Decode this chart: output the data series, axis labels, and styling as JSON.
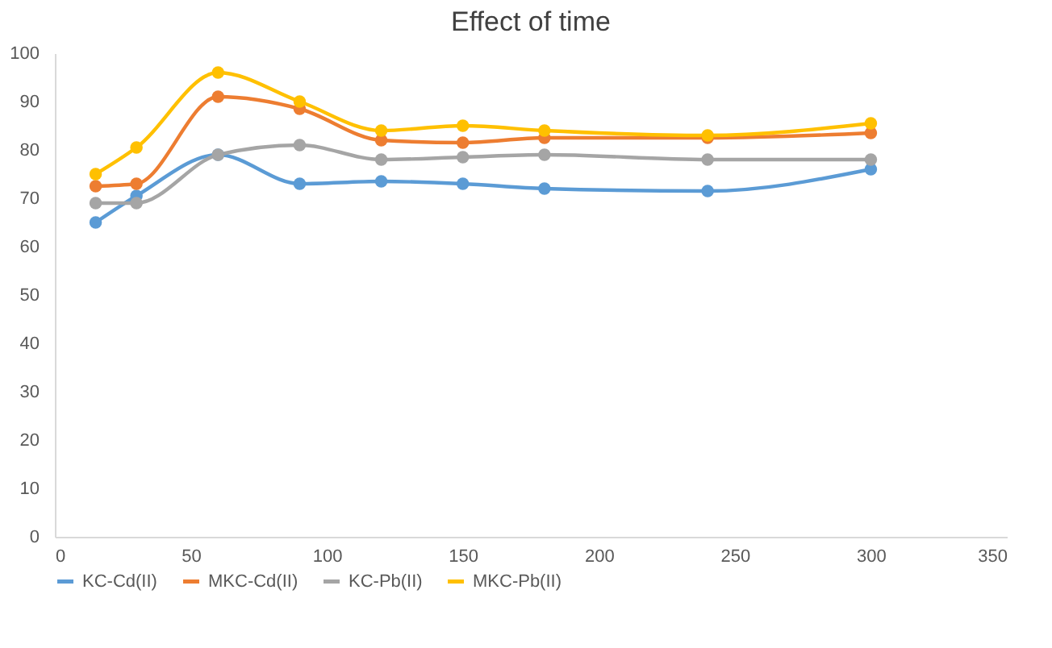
{
  "chart_data": {
    "type": "line",
    "title": "Effect of time",
    "x": [
      15,
      30,
      60,
      90,
      120,
      150,
      180,
      240,
      300
    ],
    "series": [
      {
        "name": "KC-Cd(II)",
        "color": "#5b9bd5",
        "values": [
          65,
          70.5,
          79,
          73,
          73.5,
          73,
          72,
          71.5,
          76
        ]
      },
      {
        "name": "MKC-Cd(II)",
        "color": "#ed7d31",
        "values": [
          72.5,
          73,
          91,
          88.5,
          82,
          81.5,
          82.5,
          82.5,
          83.5
        ]
      },
      {
        "name": "KC-Pb(II)",
        "color": "#a5a5a5",
        "values": [
          69,
          69,
          79,
          81,
          78,
          78.5,
          79,
          78,
          78
        ]
      },
      {
        "name": "MKC-Pb(II)",
        "color": "#ffc000",
        "values": [
          75,
          80.5,
          96,
          90,
          84,
          85,
          84,
          83,
          85.5
        ]
      }
    ],
    "xlim": [
      0,
      350
    ],
    "xticks": [
      0,
      50,
      100,
      150,
      200,
      250,
      300,
      350
    ],
    "ylim": [
      0,
      100
    ],
    "yticks": [
      0,
      10,
      20,
      30,
      40,
      50,
      60,
      70,
      80,
      90,
      100
    ],
    "grid": false,
    "legend": "bottom",
    "marker": "circle",
    "line_style": "solid"
  }
}
